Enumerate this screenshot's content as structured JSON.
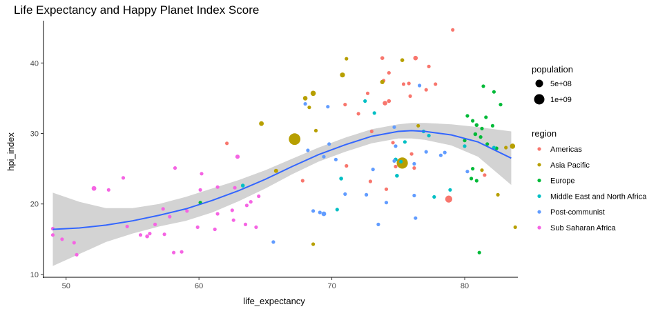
{
  "chart_data": {
    "type": "scatter",
    "title": "Life Expectancy and Happy Planet Index Score",
    "xlabel": "life_expectancy",
    "ylabel": "hpi_index",
    "xlim": [
      48.3,
      84.0
    ],
    "ylim": [
      9.6,
      46.0
    ],
    "x_ticks": [
      50,
      60,
      70,
      80
    ],
    "y_ticks": [
      10,
      20,
      30,
      40
    ],
    "grid": false,
    "legend_position": "right",
    "colors": {
      "Americas": "#f8766d",
      "Asia Pacific": "#b79f00",
      "Europe": "#00ba38",
      "Middle East and North Africa": "#00bfc4",
      "Post-communist": "#619cff",
      "Sub Saharan Africa": "#f564e3"
    },
    "size_legend": {
      "title": "population",
      "entries": [
        {
          "label": "5e+08",
          "value": 500000000
        },
        {
          "label": "1e+09",
          "value": 1000000000
        }
      ]
    },
    "color_legend": {
      "title": "region",
      "entries": [
        "Americas",
        "Asia Pacific",
        "Europe",
        "Middle East and North Africa",
        "Post-communist",
        "Sub Saharan Africa"
      ]
    },
    "smooth": {
      "x": [
        49,
        51,
        53,
        55,
        57,
        59,
        61,
        63,
        65,
        67,
        69,
        71,
        73,
        75,
        76,
        77,
        79,
        81,
        83.5
      ],
      "y": [
        16.4,
        16.6,
        17.0,
        17.6,
        18.4,
        19.3,
        20.5,
        21.9,
        23.5,
        25.3,
        27.0,
        28.4,
        29.6,
        30.3,
        30.4,
        30.3,
        29.8,
        28.8,
        26.5
      ],
      "upper": [
        21.6,
        20.3,
        19.4,
        19.4,
        20.0,
        21.0,
        22.2,
        23.4,
        24.8,
        26.4,
        28.0,
        29.4,
        30.6,
        31.3,
        31.5,
        31.5,
        31.3,
        30.9,
        30.3
      ],
      "lower": [
        11.2,
        12.9,
        14.6,
        15.8,
        16.8,
        17.6,
        18.8,
        20.4,
        22.2,
        24.2,
        26.0,
        27.4,
        28.6,
        29.3,
        29.3,
        29.1,
        28.3,
        26.7,
        22.7
      ]
    },
    "series": [
      {
        "name": "Americas",
        "points": [
          [
            79.1,
            44.7,
            0.01
          ],
          [
            73.8,
            40.7,
            0.02
          ],
          [
            76.3,
            40.7,
            0.05
          ],
          [
            77.3,
            39.5,
            0.01
          ],
          [
            74.3,
            38.6,
            0.01
          ],
          [
            73.9,
            37.5,
            0.01
          ],
          [
            75.4,
            37.0,
            0.01
          ],
          [
            75.8,
            37.1,
            0.01
          ],
          [
            77.8,
            37.0,
            0.01
          ],
          [
            72.7,
            35.7,
            0.01
          ],
          [
            74.0,
            34.3,
            0.05
          ],
          [
            74.3,
            34.6,
            0.02
          ],
          [
            71.0,
            34.1,
            0.01
          ],
          [
            75.9,
            35.3,
            0.01
          ],
          [
            77.1,
            36.2,
            0.01
          ],
          [
            72.0,
            32.8,
            0.01
          ],
          [
            73.0,
            30.3,
            0.01
          ],
          [
            62.1,
            28.6,
            0.01
          ],
          [
            74.6,
            28.7,
            0.01
          ],
          [
            76.0,
            27.1,
            0.01
          ],
          [
            74.8,
            25.3,
            0.01
          ],
          [
            76.2,
            25.1,
            0.01
          ],
          [
            78.8,
            20.7,
            0.3
          ],
          [
            71.1,
            25.4,
            0.01
          ],
          [
            72.9,
            23.2,
            0.01
          ],
          [
            67.8,
            23.3,
            0.01
          ],
          [
            74.1,
            22.1,
            0.01
          ],
          [
            81.5,
            24.1,
            0.01
          ]
        ]
      },
      {
        "name": "Asia Pacific",
        "points": [
          [
            75.3,
            40.4,
            0.02
          ],
          [
            71.1,
            40.6,
            0.01
          ],
          [
            70.8,
            38.3,
            0.08
          ],
          [
            68.6,
            35.7,
            0.1
          ],
          [
            68.0,
            35.0,
            0.05
          ],
          [
            73.8,
            37.3,
            0.04
          ],
          [
            68.3,
            33.7,
            0.01
          ],
          [
            64.7,
            31.4,
            0.06
          ],
          [
            67.2,
            29.2,
            1.3
          ],
          [
            75.3,
            25.8,
            1.2
          ],
          [
            68.8,
            30.4,
            0.01
          ],
          [
            76.5,
            31.1,
            0.01
          ],
          [
            83.1,
            28.0,
            0.01
          ],
          [
            83.6,
            28.2,
            0.1
          ],
          [
            65.8,
            24.7,
            0.03
          ],
          [
            82.5,
            21.3,
            0.01
          ],
          [
            83.8,
            16.7,
            0.01
          ],
          [
            68.6,
            14.3,
            0.01
          ],
          [
            81.3,
            24.8,
            0.01
          ]
        ]
      },
      {
        "name": "Europe",
        "points": [
          [
            81.4,
            36.7,
            0.01
          ],
          [
            82.2,
            35.9,
            0.01
          ],
          [
            80.2,
            32.5,
            0.01
          ],
          [
            80.6,
            31.8,
            0.01
          ],
          [
            81.6,
            32.3,
            0.01
          ],
          [
            82.7,
            34.1,
            0.01
          ],
          [
            81.3,
            30.7,
            0.01
          ],
          [
            80.9,
            31.2,
            0.02
          ],
          [
            82.1,
            31.1,
            0.01
          ],
          [
            80.8,
            29.9,
            0.02
          ],
          [
            81.2,
            29.5,
            0.01
          ],
          [
            80.0,
            29.0,
            0.01
          ],
          [
            82.4,
            27.9,
            0.01
          ],
          [
            81.7,
            28.5,
            0.01
          ],
          [
            80.6,
            25.0,
            0.01
          ],
          [
            80.5,
            23.6,
            0.01
          ],
          [
            80.9,
            23.3,
            0.01
          ],
          [
            81.1,
            13.1,
            0.01
          ],
          [
            60.1,
            20.2,
            0.01
          ]
        ]
      },
      {
        "name": "Middle East and North Africa",
        "points": [
          [
            74.8,
            26.3,
            0.02
          ],
          [
            75.2,
            26.0,
            0.01
          ],
          [
            74.9,
            24.0,
            0.02
          ],
          [
            73.2,
            32.9,
            0.01
          ],
          [
            72.5,
            34.6,
            0.01
          ],
          [
            70.7,
            23.6,
            0.02
          ],
          [
            63.3,
            22.6,
            0.02
          ],
          [
            75.5,
            28.8,
            0.01
          ],
          [
            76.9,
            30.3,
            0.01
          ],
          [
            77.3,
            29.7,
            0.01
          ],
          [
            80.0,
            28.2,
            0.01
          ],
          [
            82.2,
            28.0,
            0.01
          ],
          [
            78.9,
            22.0,
            0.01
          ],
          [
            70.4,
            19.2,
            0.01
          ],
          [
            77.7,
            21.0,
            0.01
          ]
        ]
      },
      {
        "name": "Post-communist",
        "points": [
          [
            74.8,
            28.2,
            0.01
          ],
          [
            74.7,
            30.9,
            0.01
          ],
          [
            77.1,
            27.4,
            0.01
          ],
          [
            76.2,
            25.7,
            0.01
          ],
          [
            78.5,
            27.3,
            0.01
          ],
          [
            73.1,
            24.9,
            0.01
          ],
          [
            74.7,
            26.1,
            0.01
          ],
          [
            74.1,
            20.2,
            0.01
          ],
          [
            71.0,
            21.4,
            0.01
          ],
          [
            72.6,
            21.3,
            0.01
          ],
          [
            76.2,
            21.2,
            0.01
          ],
          [
            68.2,
            27.6,
            0.01
          ],
          [
            69.4,
            26.7,
            0.01
          ],
          [
            69.7,
            33.8,
            0.01
          ],
          [
            68.0,
            34.2,
            0.01
          ],
          [
            70.3,
            26.3,
            0.01
          ],
          [
            69.8,
            28.5,
            0.01
          ],
          [
            68.6,
            19.0,
            0.01
          ],
          [
            69.4,
            18.6,
            0.06
          ],
          [
            69.1,
            18.8,
            0.01
          ],
          [
            73.5,
            17.1,
            0.01
          ],
          [
            76.3,
            18.0,
            0.01
          ],
          [
            65.6,
            14.6,
            0.01
          ],
          [
            78.2,
            26.9,
            0.01
          ],
          [
            80.2,
            24.6,
            0.01
          ],
          [
            76.6,
            36.8,
            0.01
          ]
        ]
      },
      {
        "name": "Sub Saharan Africa",
        "points": [
          [
            52.1,
            22.2,
            0.06
          ],
          [
            53.2,
            22.0,
            0.01
          ],
          [
            54.3,
            23.7,
            0.01
          ],
          [
            58.2,
            25.1,
            0.01
          ],
          [
            60.2,
            24.3,
            0.01
          ],
          [
            62.9,
            26.7,
            0.04
          ],
          [
            61.4,
            22.4,
            0.01
          ],
          [
            60.1,
            22.0,
            0.01
          ],
          [
            62.7,
            22.3,
            0.01
          ],
          [
            64.5,
            21.1,
            0.01
          ],
          [
            63.9,
            20.3,
            0.01
          ],
          [
            63.6,
            19.8,
            0.01
          ],
          [
            62.5,
            19.1,
            0.01
          ],
          [
            61.4,
            18.6,
            0.01
          ],
          [
            59.1,
            19.0,
            0.01
          ],
          [
            57.3,
            19.3,
            0.01
          ],
          [
            57.8,
            18.2,
            0.01
          ],
          [
            56.7,
            17.1,
            0.01
          ],
          [
            59.9,
            16.7,
            0.01
          ],
          [
            61.2,
            16.4,
            0.01
          ],
          [
            62.6,
            17.7,
            0.01
          ],
          [
            63.5,
            17.1,
            0.01
          ],
          [
            64.3,
            16.7,
            0.01
          ],
          [
            49.0,
            16.5,
            0.01
          ],
          [
            49.7,
            15.0,
            0.01
          ],
          [
            50.6,
            14.5,
            0.01
          ],
          [
            56.3,
            15.8,
            0.01
          ],
          [
            56.1,
            15.4,
            0.02
          ],
          [
            57.4,
            15.7,
            0.01
          ],
          [
            58.1,
            13.1,
            0.01
          ],
          [
            58.7,
            13.2,
            0.01
          ],
          [
            50.8,
            12.8,
            0.01
          ],
          [
            54.6,
            16.8,
            0.01
          ],
          [
            55.6,
            15.6,
            0.01
          ],
          [
            49.0,
            15.6,
            0.01
          ]
        ]
      }
    ]
  }
}
